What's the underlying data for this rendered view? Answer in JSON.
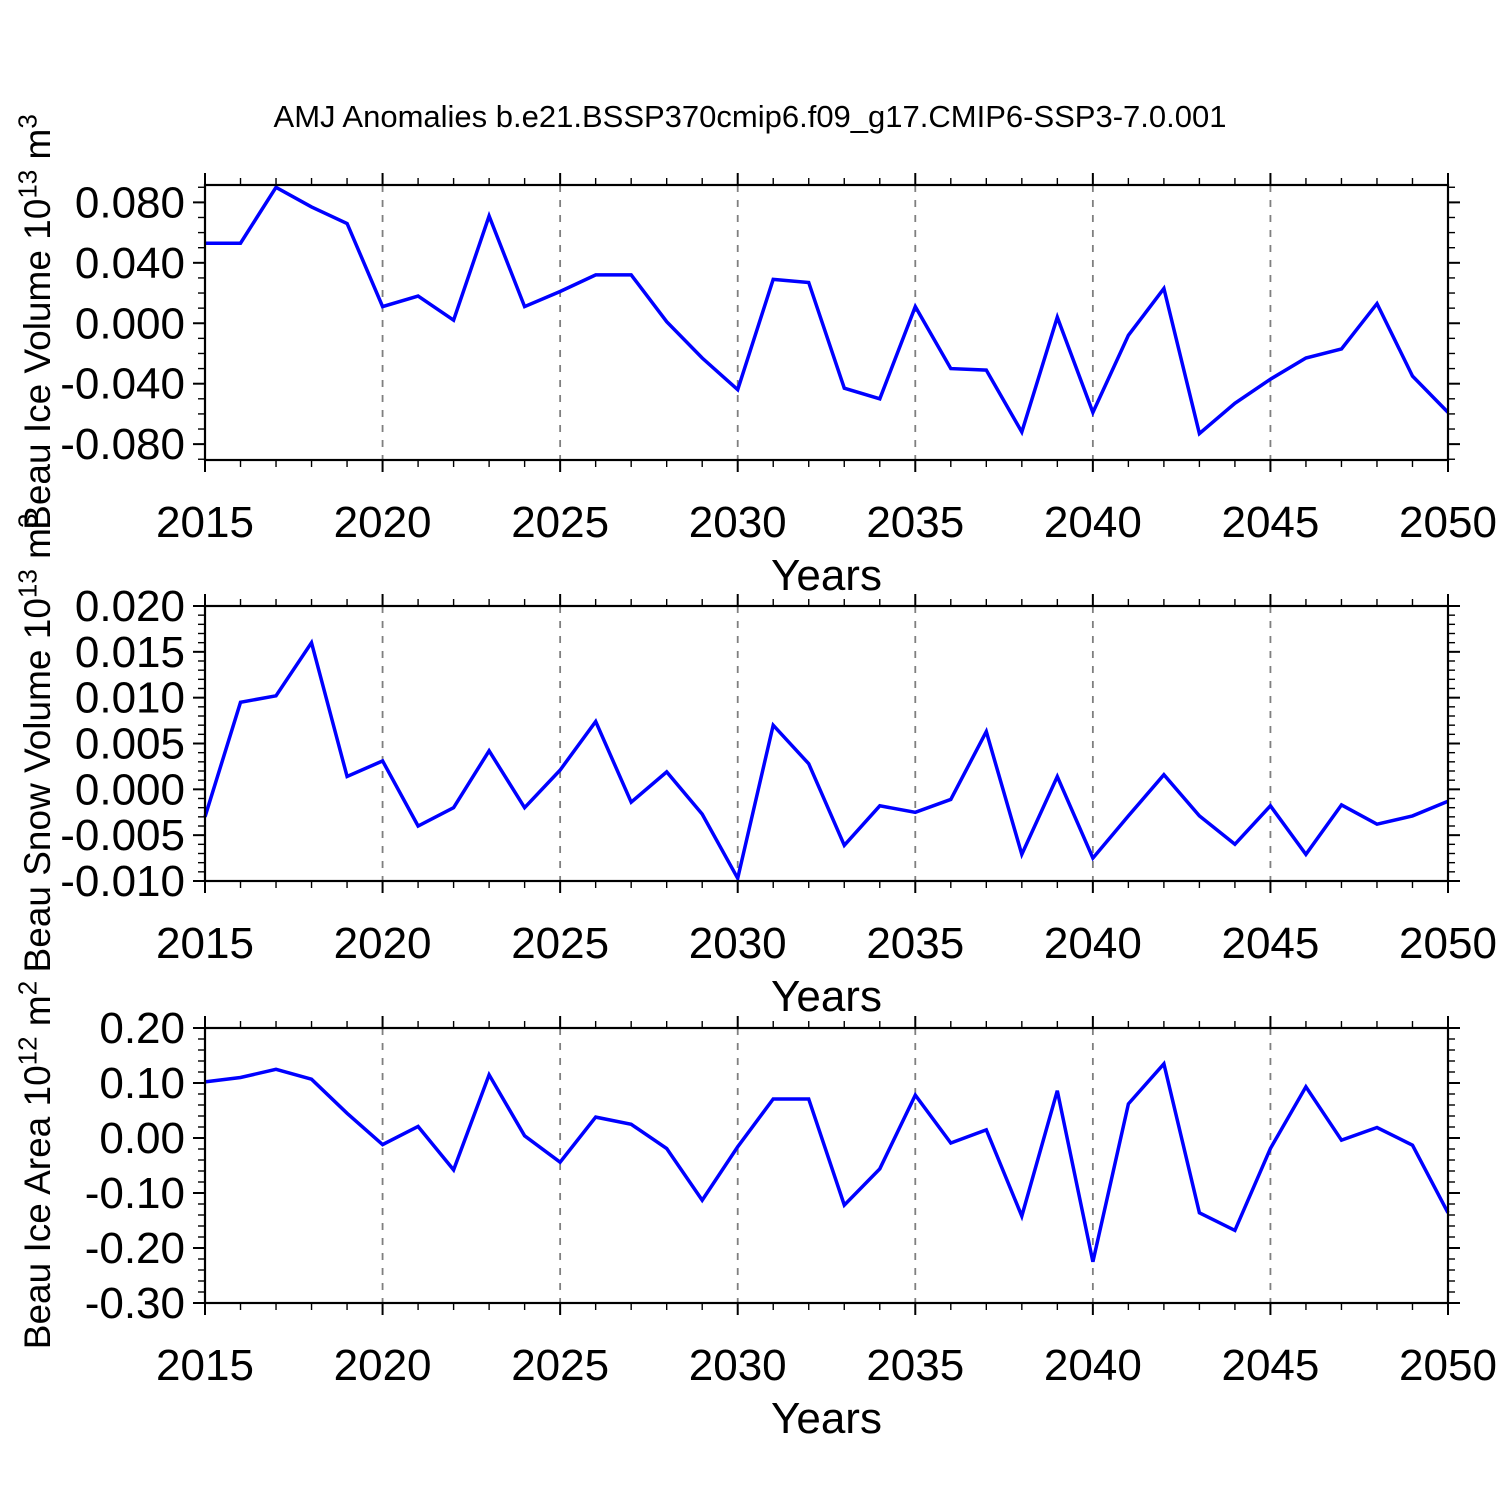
{
  "page": {
    "title": "AMJ Anomalies b.e21.BSSP370cmip6.f09_g17.CMIP6-SSP3-7.0.001"
  },
  "style": {
    "line_color": "#0000ff",
    "axis_color": "#000000",
    "grid_color": "#7f7f7f",
    "text_color": "#000000"
  },
  "years": [
    2015,
    2016,
    2017,
    2018,
    2019,
    2020,
    2021,
    2022,
    2023,
    2024,
    2025,
    2026,
    2027,
    2028,
    2029,
    2030,
    2031,
    2032,
    2033,
    2034,
    2035,
    2036,
    2037,
    2038,
    2039,
    2040,
    2041,
    2042,
    2043,
    2044,
    2045,
    2046,
    2047,
    2048,
    2049,
    2050
  ],
  "chart_data": [
    {
      "type": "line",
      "name": "beau-ice-volume",
      "ylabel_text": "Beau Ice Volume 10",
      "ylabel_exp": "13",
      "ylabel_unit": " m",
      "ylabel_unit_exp": "3",
      "xlabel": "Years",
      "legend": "none",
      "grid": "vertical-dashed",
      "ylim": [
        -0.0905,
        0.0915
      ],
      "ytick_values": [
        0.08,
        0.04,
        0.0,
        -0.04,
        -0.08
      ],
      "ytick_labels": [
        "0.080",
        "0.040",
        "0.000",
        "-0.040",
        "-0.080"
      ],
      "ytick_minor_step": 0.01,
      "xtick_major_years": [
        2015,
        2020,
        2025,
        2030,
        2035,
        2040,
        2045,
        2050
      ],
      "xtick_labels": [
        "2015",
        "2020",
        "2025",
        "2030",
        "2035",
        "2040",
        "2045",
        "2050"
      ],
      "grid_years": [
        2020,
        2025,
        2030,
        2035,
        2040,
        2045
      ],
      "values": [
        0.053,
        0.053,
        0.09,
        0.077,
        0.066,
        0.011,
        0.018,
        0.002,
        0.071,
        0.011,
        0.021,
        0.032,
        0.032,
        0.001,
        -0.023,
        -0.044,
        0.029,
        0.027,
        -0.043,
        -0.05,
        0.011,
        -0.03,
        -0.031,
        -0.072,
        0.004,
        -0.059,
        -0.008,
        0.023,
        -0.073,
        -0.053,
        -0.037,
        -0.023,
        -0.017,
        0.013,
        -0.035,
        -0.059
      ]
    },
    {
      "type": "line",
      "name": "beau-snow-volume",
      "ylabel_text": "Beau Snow Volume 10",
      "ylabel_exp": "13",
      "ylabel_unit": " m",
      "ylabel_unit_exp": "3",
      "xlabel": "Years",
      "legend": "none",
      "grid": "vertical-dashed",
      "ylim": [
        -0.01,
        0.02
      ],
      "ytick_values": [
        0.02,
        0.015,
        0.01,
        0.005,
        0.0,
        -0.005,
        -0.01
      ],
      "ytick_labels": [
        "0.020",
        "0.015",
        "0.010",
        "0.005",
        "0.000",
        "-0.005",
        "-0.010"
      ],
      "ytick_minor_step": 0.001,
      "xtick_major_years": [
        2015,
        2020,
        2025,
        2030,
        2035,
        2040,
        2045,
        2050
      ],
      "xtick_labels": [
        "2015",
        "2020",
        "2025",
        "2030",
        "2035",
        "2040",
        "2045",
        "2050"
      ],
      "grid_years": [
        2020,
        2025,
        2030,
        2035,
        2040,
        2045
      ],
      "values": [
        -0.003,
        0.0095,
        0.0102,
        0.016,
        0.0014,
        0.0031,
        -0.004,
        -0.002,
        0.0042,
        -0.002,
        0.0021,
        0.0074,
        -0.0014,
        0.0019,
        -0.0027,
        -0.0097,
        0.007,
        0.0028,
        -0.0061,
        -0.0018,
        -0.0025,
        -0.0011,
        0.0063,
        -0.0071,
        0.0014,
        -0.0075,
        -0.0029,
        0.0016,
        -0.0029,
        -0.006,
        -0.0018,
        -0.0071,
        -0.0017,
        -0.0038,
        -0.0029,
        -0.0013
      ]
    },
    {
      "type": "line",
      "name": "beau-ice-area",
      "ylabel_text": "Beau Ice Area 10",
      "ylabel_exp": "12",
      "ylabel_unit": " m",
      "ylabel_unit_exp": "2",
      "xlabel": "Years",
      "legend": "none",
      "grid": "vertical-dashed",
      "ylim": [
        -0.3,
        0.2
      ],
      "ytick_values": [
        0.2,
        0.1,
        0.0,
        -0.1,
        -0.2,
        -0.3
      ],
      "ytick_labels": [
        "0.20",
        "0.10",
        "0.00",
        "-0.10",
        "-0.20",
        "-0.30"
      ],
      "ytick_minor_step": 0.02,
      "xtick_major_years": [
        2015,
        2020,
        2025,
        2030,
        2035,
        2040,
        2045,
        2050
      ],
      "xtick_labels": [
        "2015",
        "2020",
        "2025",
        "2030",
        "2035",
        "2040",
        "2045",
        "2050"
      ],
      "grid_years": [
        2020,
        2025,
        2030,
        2035,
        2040,
        2045
      ],
      "values": [
        0.102,
        0.11,
        0.125,
        0.107,
        0.045,
        -0.012,
        0.021,
        -0.058,
        0.115,
        0.004,
        -0.044,
        0.038,
        0.025,
        -0.019,
        -0.113,
        -0.016,
        0.071,
        0.071,
        -0.122,
        -0.056,
        0.078,
        -0.009,
        0.015,
        -0.142,
        0.086,
        -0.225,
        0.062,
        0.135,
        -0.136,
        -0.168,
        -0.019,
        0.093,
        -0.004,
        0.019,
        -0.013,
        -0.136
      ]
    }
  ]
}
